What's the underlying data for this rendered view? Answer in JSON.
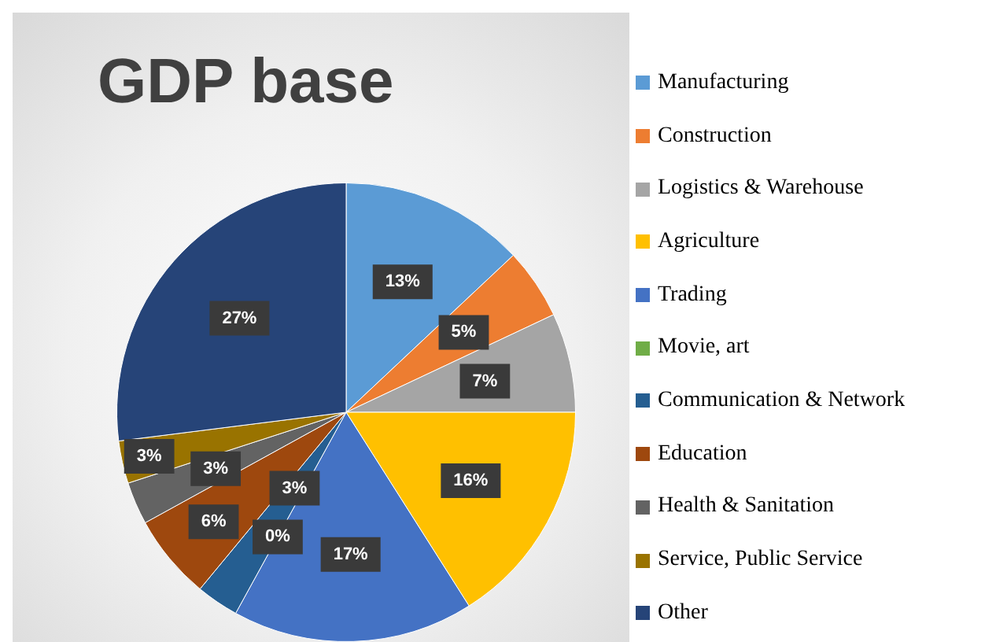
{
  "chart_data": {
    "type": "pie",
    "title": "GDP base",
    "categories": [
      "Manufacturing",
      "Construction",
      "Logistics & Warehouse",
      "Agriculture",
      "Trading",
      "Movie, art",
      "Communication & Network",
      "Education",
      "Health & Sanitation",
      "Service, Public Service",
      "Other"
    ],
    "values": [
      13,
      5,
      7,
      16,
      17,
      0,
      3,
      6,
      3,
      3,
      27
    ],
    "colors": [
      "#5b9bd5",
      "#ed7d31",
      "#a5a5a5",
      "#ffc000",
      "#4472c4",
      "#70ad47",
      "#255e91",
      "#9e480e",
      "#636363",
      "#997300",
      "#264478"
    ],
    "value_labels": [
      "13%",
      "5%",
      "7%",
      "16%",
      "17%",
      "0%",
      "3%",
      "6%",
      "3%",
      "3%",
      "27%"
    ],
    "legend": "right"
  }
}
